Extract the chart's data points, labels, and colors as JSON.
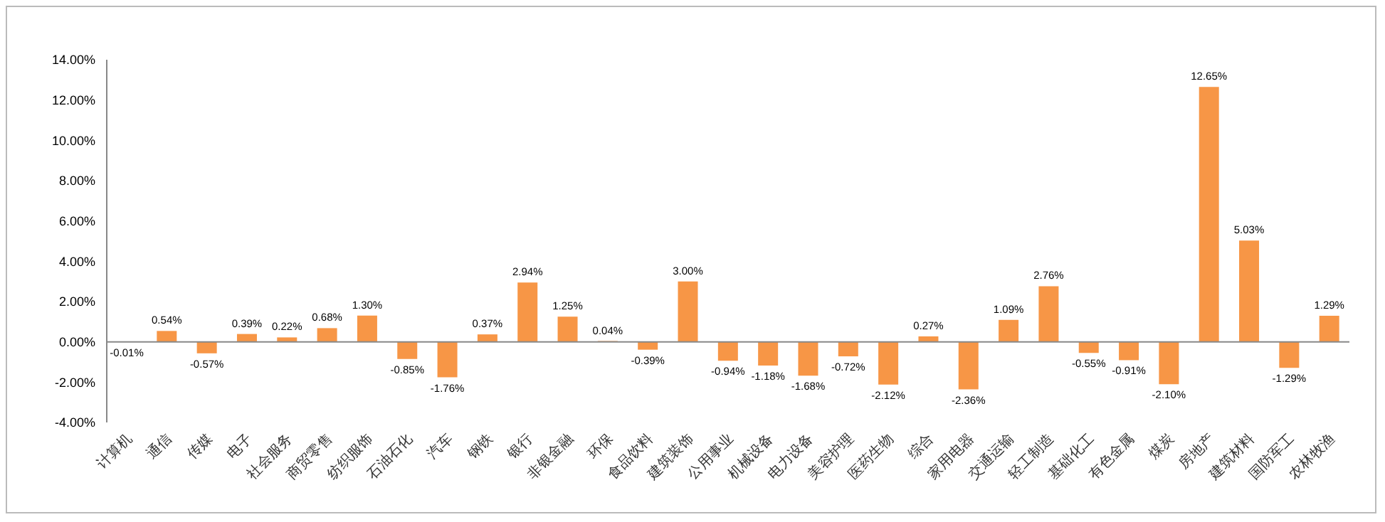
{
  "chart_data": {
    "type": "bar",
    "categories": [
      "计算机",
      "通信",
      "传媒",
      "电子",
      "社会服务",
      "商贸零售",
      "纺织服饰",
      "石油石化",
      "汽车",
      "钢铁",
      "银行",
      "非银金融",
      "环保",
      "食品饮料",
      "建筑装饰",
      "公用事业",
      "机械设备",
      "电力设备",
      "美容护理",
      "医药生物",
      "综合",
      "家用电器",
      "交通运输",
      "轻工制造",
      "基础化工",
      "有色金属",
      "煤炭",
      "房地产",
      "建筑材料",
      "国防军工",
      "农林牧渔"
    ],
    "series": [
      {
        "color": "#f79646",
        "values": [
          -0.01,
          0.54,
          -0.57,
          0.39,
          0.22,
          0.68,
          1.3,
          -0.85,
          -1.76,
          0.37,
          2.94,
          1.25,
          0.04,
          -0.39,
          3.0,
          -0.94,
          -1.18,
          -1.68,
          -0.72,
          -2.12,
          0.27,
          -2.36,
          1.09,
          2.76,
          -0.55,
          -0.91,
          -2.1,
          12.65,
          5.03,
          -1.29,
          1.29
        ],
        "value_labels": [
          "-0.01%",
          "0.54%",
          "-0.57%",
          "0.39%",
          "0.22%",
          "0.68%",
          "1.30%",
          "-0.85%",
          "-1.76%",
          "0.37%",
          "2.94%",
          "1.25%",
          "0.04%",
          "-0.39%",
          "3.00%",
          "-0.94%",
          "-1.18%",
          "-1.68%",
          "-0.72%",
          "-2.12%",
          "0.27%",
          "-2.36%",
          "1.09%",
          "2.76%",
          "-0.55%",
          "-0.91%",
          "-2.10%",
          "12.65%",
          "5.03%",
          "-1.29%",
          "1.29%"
        ]
      }
    ],
    "ylim": [
      -4,
      14
    ],
    "yticks": [
      {
        "value": -4,
        "label": "-4.00%"
      },
      {
        "value": -2,
        "label": "-2.00%"
      },
      {
        "value": 0,
        "label": "0.00%"
      },
      {
        "value": 2,
        "label": "2.00%"
      },
      {
        "value": 4,
        "label": "4.00%"
      },
      {
        "value": 6,
        "label": "6.00%"
      },
      {
        "value": 8,
        "label": "8.00%"
      },
      {
        "value": 10,
        "label": "10.00%"
      },
      {
        "value": 12,
        "label": "12.00%"
      },
      {
        "value": 14,
        "label": "14.00%"
      }
    ],
    "legend": false
  }
}
